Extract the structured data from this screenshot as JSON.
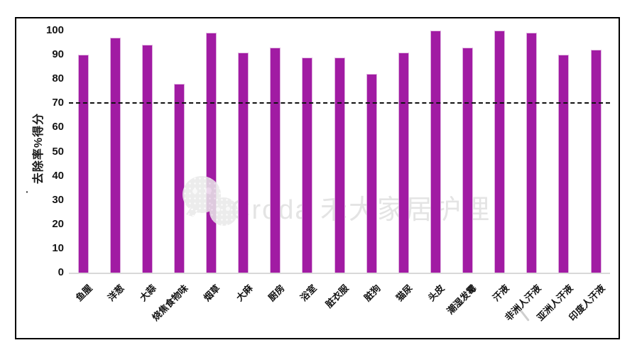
{
  "chart_data": {
    "type": "bar",
    "title": "",
    "xlabel": "",
    "ylabel": "去除率%得分",
    "ylim": [
      0,
      100
    ],
    "yticks": [
      0,
      10,
      20,
      30,
      40,
      50,
      60,
      70,
      80,
      90,
      100
    ],
    "grid": false,
    "legend": false,
    "reference_line": {
      "value": 70,
      "style": "dashed",
      "color": "#111111"
    },
    "categories": [
      "鱼腥",
      "洋葱",
      "大蒜",
      "烧焦食物味",
      "烟草",
      "大麻",
      "厨房",
      "浴室",
      "脏衣服",
      "脏狗",
      "猫尿",
      "头皮",
      "潮湿发霉",
      "汗液",
      "非洲人汗液",
      "亚洲人汗液",
      "印度人汗液"
    ],
    "values": [
      90,
      97,
      94,
      78,
      99,
      91,
      93,
      89,
      89,
      82,
      91,
      100,
      93,
      100,
      99,
      90,
      92
    ],
    "bar_color": "#A11BA3",
    "bar_edge_color": "#DDB0DE"
  },
  "axis": {
    "ylabel_fragment": "·"
  },
  "watermark": {
    "icon": "wechat-icon",
    "text": "Croda 禾大家居护理",
    "color": "#e4e4e4"
  }
}
